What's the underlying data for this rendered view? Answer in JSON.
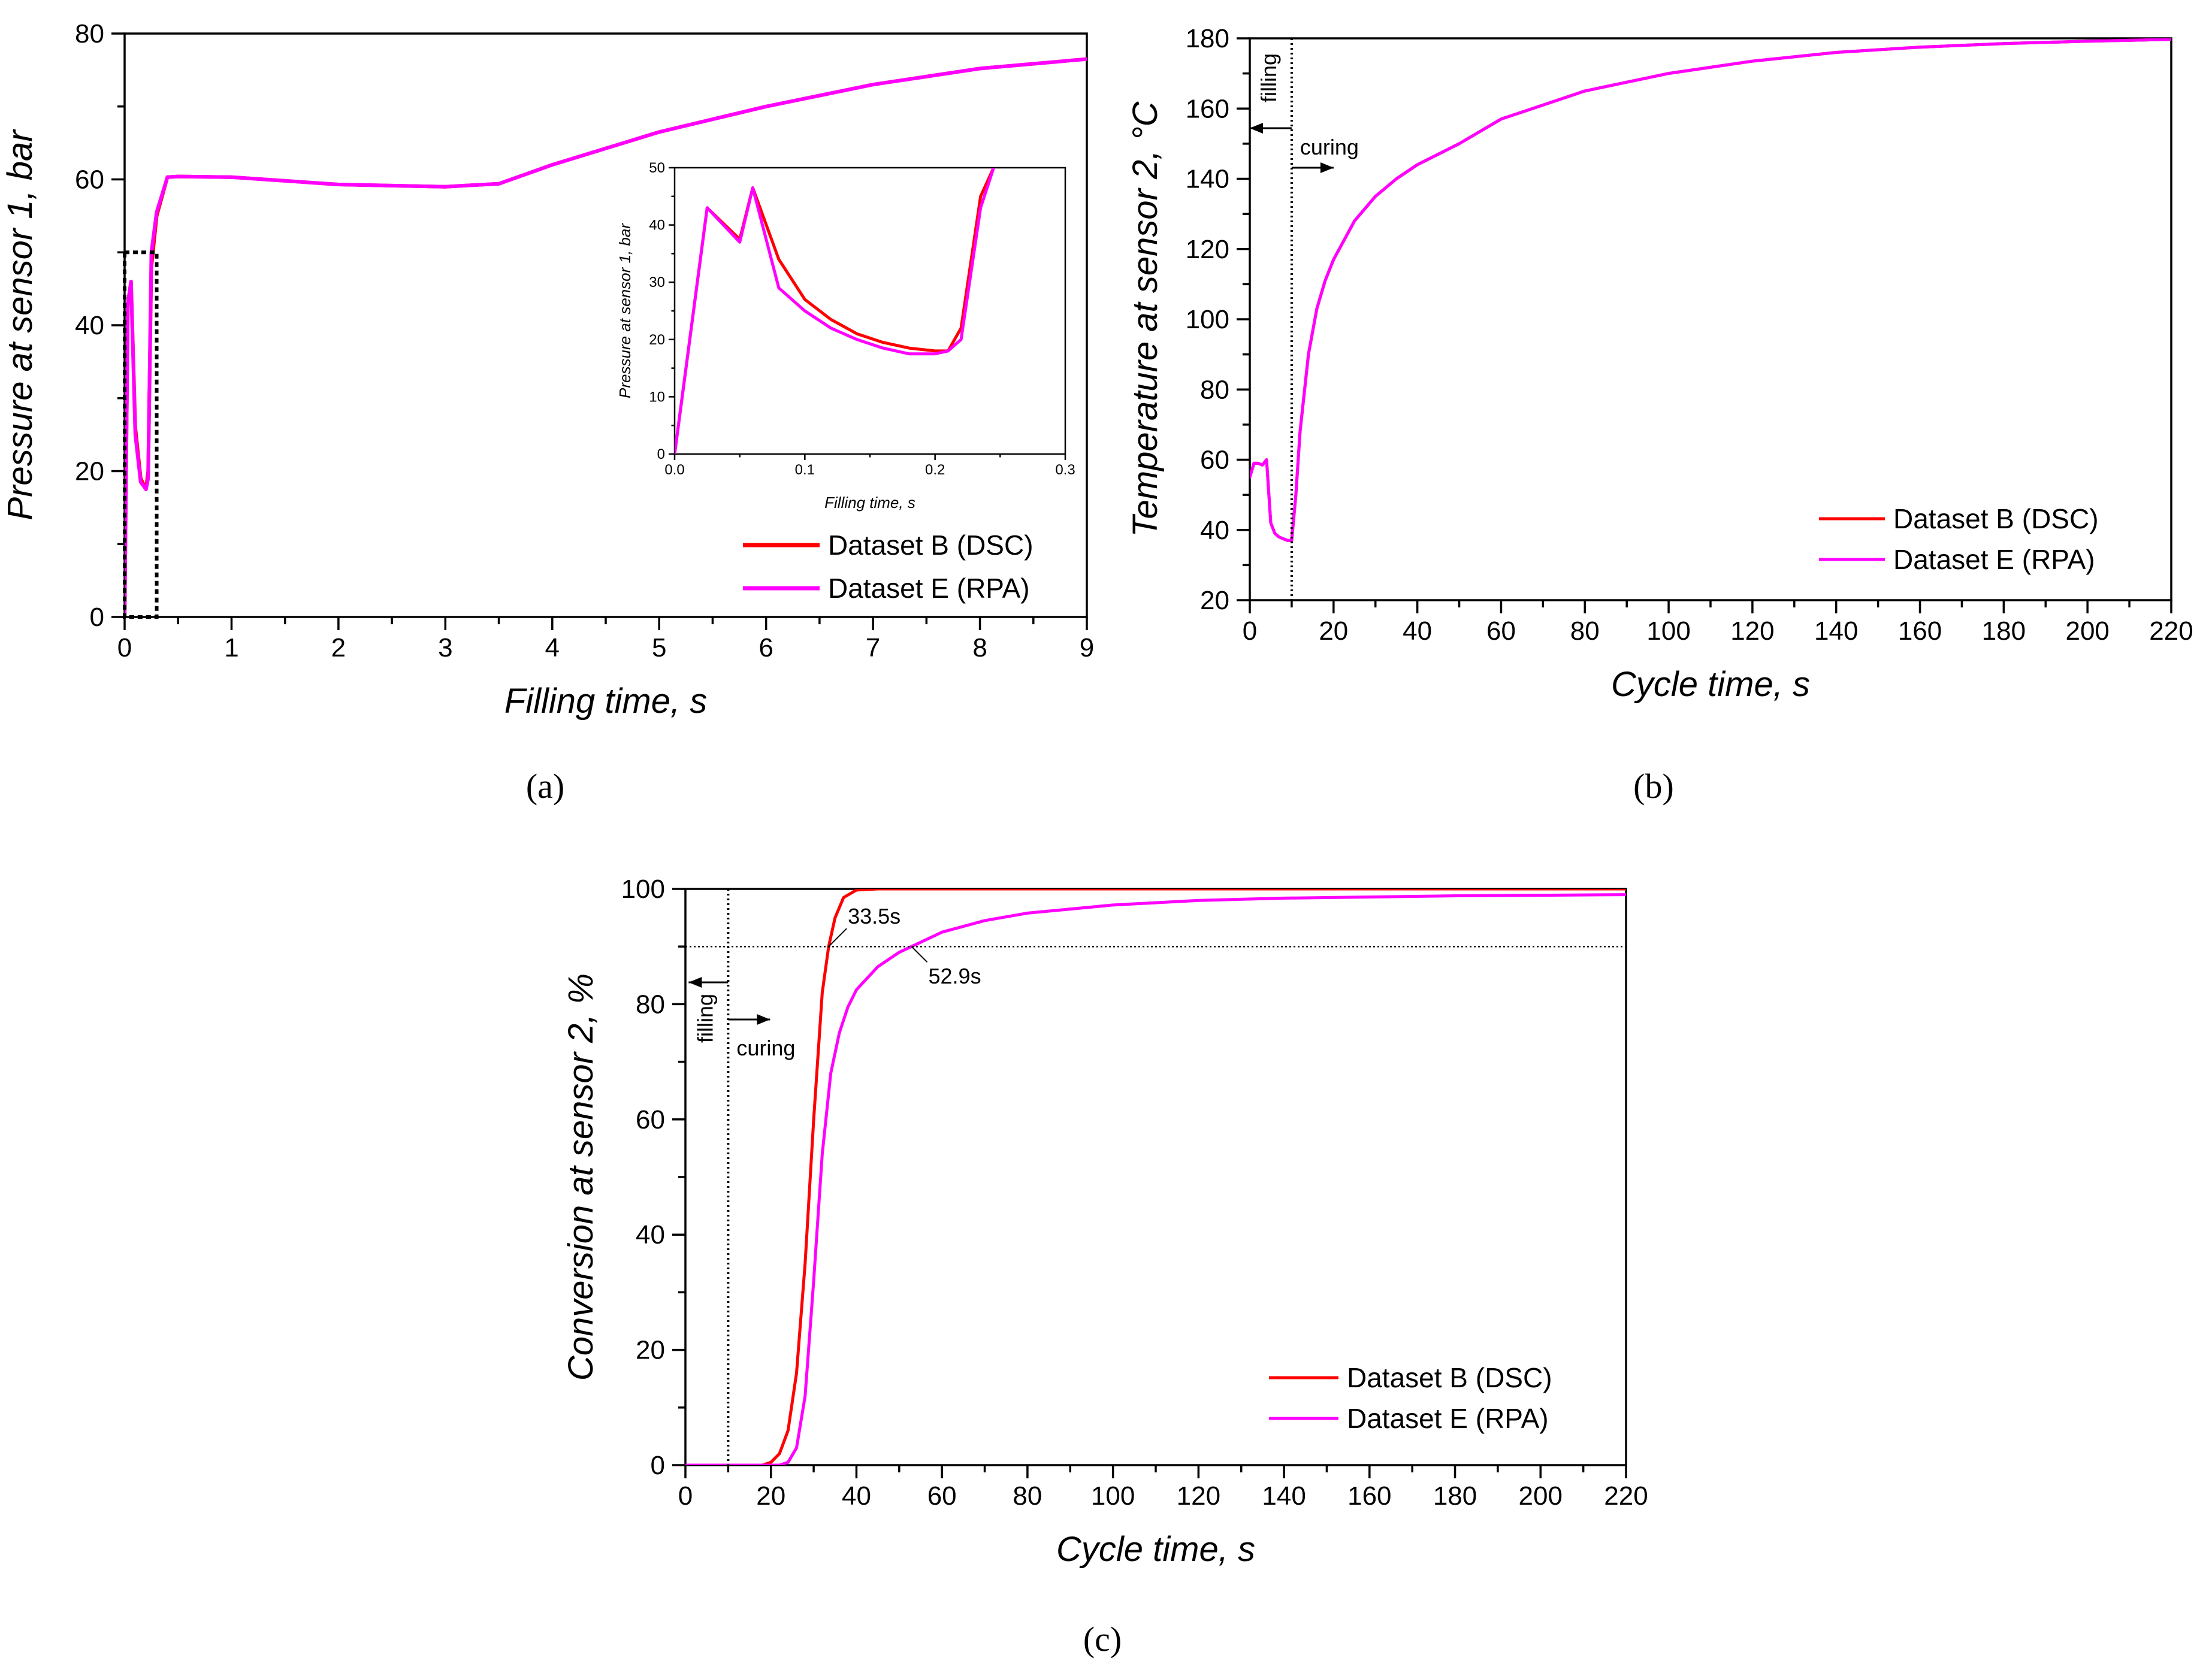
{
  "colors": {
    "dsc": "#ff0000",
    "rpa": "#ff00ff",
    "axis": "#000000"
  },
  "chart_data": [
    {
      "id": "a",
      "type": "line",
      "caption": "(a)",
      "xlabel": "Filling time, s",
      "ylabel": "Pressure at sensor 1, bar",
      "xlim": [
        0,
        9
      ],
      "ylim": [
        0,
        80
      ],
      "xticks": [
        0,
        1,
        2,
        3,
        4,
        5,
        6,
        7,
        8,
        9
      ],
      "yticks": [
        0,
        20,
        40,
        60,
        80
      ],
      "grid": false,
      "legend": "bottom-right",
      "zoom_box": {
        "x": [
          0,
          0.3
        ],
        "y": [
          0,
          50
        ]
      },
      "series": [
        {
          "name": "Dataset B (DSC)",
          "color": "#ff0000",
          "x": [
            0,
            0.03,
            0.06,
            0.1,
            0.15,
            0.2,
            0.22,
            0.25,
            0.3,
            0.4,
            0.5,
            1,
            2,
            3,
            3.5,
            4,
            5,
            6,
            7,
            8,
            9
          ],
          "y": [
            0,
            43,
            46,
            26,
            19,
            17.5,
            20,
            48,
            55,
            60.3,
            60.4,
            60.3,
            59.3,
            59,
            59.4,
            62,
            66.5,
            70,
            73,
            75.2,
            76.5
          ]
        },
        {
          "name": "Dataset E (RPA)",
          "color": "#ff00ff",
          "x": [
            0,
            0.03,
            0.06,
            0.1,
            0.15,
            0.2,
            0.22,
            0.25,
            0.3,
            0.4,
            0.5,
            1,
            2,
            3,
            3.5,
            4,
            5,
            6,
            7,
            8,
            9
          ],
          "y": [
            0,
            43,
            46,
            25,
            18.5,
            17.5,
            19,
            50,
            55.5,
            60.3,
            60.4,
            60.3,
            59.3,
            59,
            59.4,
            62,
            66.5,
            70,
            73,
            75.2,
            76.5
          ]
        }
      ],
      "inset": {
        "xlabel": "Filling time, s",
        "ylabel": "Pressure at sensor 1, bar",
        "xlim": [
          0,
          0.3
        ],
        "ylim": [
          0,
          50
        ],
        "xticks": [
          "0.0",
          "0.1",
          "0.2",
          "0.3"
        ],
        "yticks": [
          0,
          10,
          20,
          30,
          40,
          50
        ],
        "series": [
          {
            "name": "Dataset B (DSC)",
            "color": "#ff0000",
            "x": [
              0,
              0.025,
              0.05,
              0.06,
              0.08,
              0.1,
              0.12,
              0.14,
              0.16,
              0.18,
              0.2,
              0.21,
              0.22,
              0.235,
              0.245
            ],
            "y": [
              0,
              43,
              37.5,
              46.5,
              34,
              27,
              23.5,
              21,
              19.5,
              18.5,
              18,
              18,
              22,
              45,
              50
            ]
          },
          {
            "name": "Dataset E (RPA)",
            "color": "#ff00ff",
            "x": [
              0,
              0.025,
              0.05,
              0.06,
              0.08,
              0.1,
              0.12,
              0.14,
              0.16,
              0.18,
              0.2,
              0.21,
              0.22,
              0.235,
              0.245
            ],
            "y": [
              0,
              43,
              37,
              46.5,
              29,
              25,
              22,
              20,
              18.5,
              17.5,
              17.5,
              18,
              20,
              43,
              50
            ]
          }
        ]
      }
    },
    {
      "id": "b",
      "type": "line",
      "caption": "(b)",
      "xlabel": "Cycle time, s",
      "ylabel": "Temperature at sensor 2, °C",
      "xlim": [
        0,
        220
      ],
      "ylim": [
        20,
        180
      ],
      "xticks": [
        0,
        20,
        40,
        60,
        80,
        100,
        120,
        140,
        160,
        180,
        200,
        220
      ],
      "yticks": [
        20,
        40,
        60,
        80,
        100,
        120,
        140,
        160,
        180
      ],
      "grid": false,
      "legend": "bottom-right",
      "marker_line_x": 10,
      "annotations": {
        "filling": "filling",
        "curing": "curing"
      },
      "series": [
        {
          "name": "Dataset B (DSC)",
          "color": "#ff0000",
          "x": [
            0,
            1,
            2,
            3,
            4,
            5,
            6,
            7,
            8,
            9,
            10,
            11,
            12,
            14,
            16,
            18,
            20,
            25,
            30,
            35,
            40,
            50,
            60,
            80,
            100,
            120,
            140,
            160,
            180,
            200,
            220
          ],
          "y": [
            55,
            59,
            59,
            58.5,
            60,
            42,
            39,
            38,
            37.5,
            37,
            37,
            50,
            68,
            90,
            103,
            111,
            117,
            128,
            135,
            140,
            144,
            150,
            157,
            165,
            170,
            173.5,
            176,
            177.5,
            178.5,
            179.2,
            179.7
          ]
        },
        {
          "name": "Dataset E (RPA)",
          "color": "#ff00ff",
          "x": [
            0,
            1,
            2,
            3,
            4,
            5,
            6,
            7,
            8,
            9,
            10,
            11,
            12,
            14,
            16,
            18,
            20,
            25,
            30,
            35,
            40,
            50,
            60,
            80,
            100,
            120,
            140,
            160,
            180,
            200,
            220
          ],
          "y": [
            55,
            59,
            59,
            58.5,
            60,
            42,
            39,
            38,
            37.5,
            37,
            37,
            50,
            68,
            90,
            103,
            111,
            117,
            128,
            135,
            140,
            144,
            150,
            157,
            165,
            170,
            173.5,
            176,
            177.5,
            178.5,
            179.2,
            179.7
          ]
        }
      ]
    },
    {
      "id": "c",
      "type": "line",
      "caption": "(c)",
      "xlabel": "Cycle time, s",
      "ylabel": "Conversion at sensor 2, %",
      "xlim": [
        0,
        220
      ],
      "ylim": [
        0,
        100
      ],
      "xticks": [
        0,
        20,
        40,
        60,
        80,
        100,
        120,
        140,
        160,
        180,
        200,
        220
      ],
      "yticks": [
        0,
        20,
        40,
        60,
        80,
        100
      ],
      "grid": false,
      "legend": "bottom-right",
      "marker_line_x": 10,
      "threshold_y": 90,
      "annotations": {
        "filling": "filling",
        "curing": "curing",
        "dsc_time": "33.5s",
        "rpa_time": "52.9s"
      },
      "annotation_points": {
        "dsc": [
          33.5,
          90
        ],
        "rpa": [
          52.9,
          90
        ]
      },
      "series": [
        {
          "name": "Dataset B (DSC)",
          "color": "#ff0000",
          "x": [
            0,
            18,
            20,
            22,
            24,
            26,
            28,
            30,
            32,
            33.5,
            35,
            37,
            40,
            45,
            220
          ],
          "y": [
            0,
            0,
            0.5,
            2,
            6,
            16,
            35,
            60,
            82,
            90,
            95,
            98.5,
            99.8,
            100,
            100
          ]
        },
        {
          "name": "Dataset E (RPA)",
          "color": "#ff00ff",
          "x": [
            0,
            22,
            24,
            26,
            28,
            30,
            32,
            34,
            36,
            38,
            40,
            45,
            50,
            52.9,
            60,
            70,
            80,
            100,
            120,
            140,
            160,
            180,
            200,
            220
          ],
          "y": [
            0,
            0,
            0.5,
            3,
            12,
            32,
            54,
            68,
            75,
            79.5,
            82.5,
            86.5,
            89,
            90,
            92.5,
            94.5,
            95.8,
            97.2,
            98,
            98.4,
            98.6,
            98.8,
            98.9,
            99
          ]
        }
      ]
    }
  ]
}
